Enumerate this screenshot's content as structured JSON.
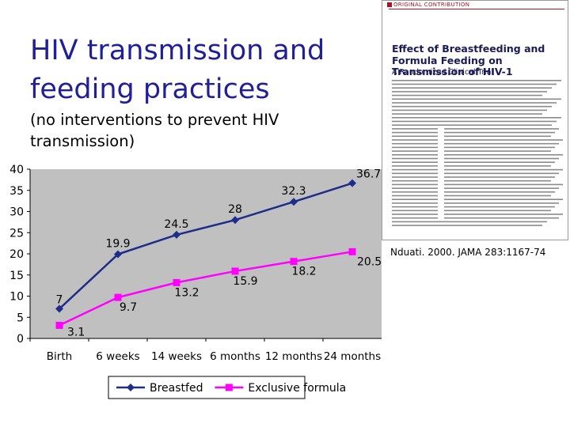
{
  "slide": {
    "title": "HIV transmission and feeding practices",
    "subtitle": "(no interventions to prevent HIV transmission)",
    "reference": "Nduati. 2000. JAMA 283:1167-74"
  },
  "article": {
    "label": "ORIGINAL CONTRIBUTION",
    "title": "Effect of Breastfeeding and Formula Feeding on Transmission of HIV-1",
    "subtitle": "A Randomized Clinical Trial"
  },
  "chart_data": {
    "type": "line",
    "categories": [
      "Birth",
      "6 weeks",
      "14 weeks",
      "6 months",
      "12 months",
      "24 months"
    ],
    "series": [
      {
        "name": "Breastfed",
        "values": [
          7,
          19.9,
          24.5,
          28,
          32.3,
          36.7
        ],
        "labels": [
          "7",
          "19.9",
          "24.5",
          "28",
          "32.3",
          "36.7"
        ],
        "color": "#1f2d8a",
        "marker": "diamond"
      },
      {
        "name": "Exclusive formula",
        "values": [
          3.1,
          9.7,
          13.2,
          15.9,
          18.2,
          20.5
        ],
        "labels": [
          "3.1",
          "9.7",
          "13.2",
          "15.9",
          "18.2",
          "20.5"
        ],
        "color": "#ff00ff",
        "marker": "square"
      }
    ],
    "yticks": [
      "0",
      "5",
      "10",
      "15",
      "20",
      "25",
      "30",
      "35",
      "40"
    ],
    "ylim": [
      0,
      40
    ],
    "grid": false,
    "plot_background": "#c0c0c0",
    "legend": "bottom"
  }
}
